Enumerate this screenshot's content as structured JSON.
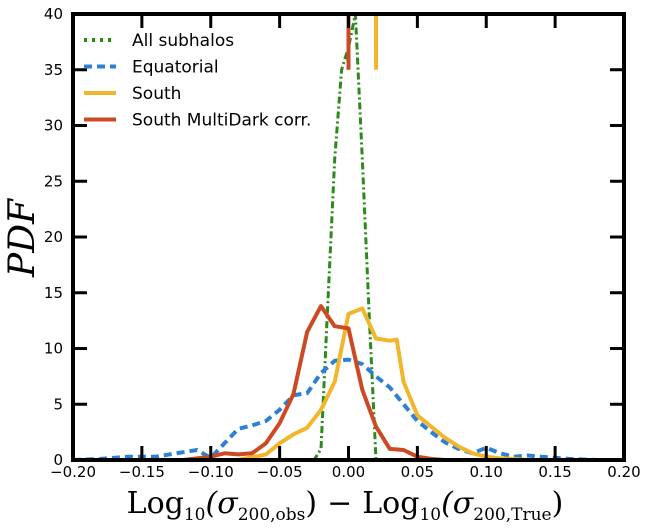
{
  "chart_data": {
    "type": "line",
    "title": "",
    "xlabel": "Log₁₀(σ₂₀₀,obs) − Log₁₀(σ₂₀₀,True)",
    "xlabel_parts": {
      "log1": "Log",
      "sub1": "10",
      "open1": "(σ",
      "sub1b": "200,obs",
      "close1": ")",
      "minus": "−",
      "log2": "Log",
      "sub2": "10",
      "open2": "(σ",
      "sub2b": "200,True",
      "close2": ")"
    },
    "ylabel": "PDF",
    "xlim": [
      -0.2,
      0.2
    ],
    "ylim": [
      0,
      40
    ],
    "xticks": [
      -0.2,
      -0.15,
      -0.1,
      -0.05,
      0.0,
      0.05,
      0.1,
      0.15,
      0.2
    ],
    "xtick_labels": [
      "−0.20",
      "−0.15",
      "−0.10",
      "−0.05",
      "0.00",
      "0.05",
      "0.10",
      "0.15",
      "0.20"
    ],
    "yticks": [
      0,
      5,
      10,
      15,
      20,
      25,
      30,
      35,
      40
    ],
    "ytick_labels": [
      "0",
      "5",
      "10",
      "15",
      "20",
      "25",
      "30",
      "35",
      "40"
    ],
    "grid": false,
    "legend_position": "top-left",
    "series": [
      {
        "name": "All subhalos",
        "color": "#2a8a1a",
        "style": "dashdot",
        "x": [
          -0.2,
          -0.05,
          -0.025,
          -0.02,
          -0.015,
          -0.01,
          -0.005,
          0.0,
          0.005,
          0.01,
          0.015,
          0.02,
          0.025,
          0.05,
          0.2
        ],
        "y": [
          0,
          0,
          0,
          1,
          14,
          27,
          35,
          37,
          40,
          27,
          13,
          0,
          0,
          0,
          0
        ]
      },
      {
        "name": "Equatorial",
        "color": "#2e7fd6",
        "style": "dashed",
        "x": [
          -0.2,
          -0.18,
          -0.16,
          -0.14,
          -0.12,
          -0.11,
          -0.1,
          -0.09,
          -0.08,
          -0.07,
          -0.06,
          -0.05,
          -0.04,
          -0.03,
          -0.02,
          -0.01,
          0.0,
          0.01,
          0.02,
          0.03,
          0.04,
          0.05,
          0.06,
          0.07,
          0.08,
          0.09,
          0.1,
          0.11,
          0.12,
          0.13,
          0.14,
          0.16,
          0.18,
          0.2
        ],
        "y": [
          0,
          0.1,
          0.3,
          0.3,
          0.7,
          0.9,
          0.2,
          1.5,
          2.8,
          3.1,
          3.5,
          4.5,
          5.8,
          6.0,
          7.8,
          8.9,
          9.0,
          8.6,
          7.5,
          6.5,
          5.0,
          3.5,
          2.5,
          1.6,
          1.0,
          0.6,
          1.1,
          0.6,
          0.3,
          0.4,
          0.3,
          0.1,
          0,
          0
        ]
      },
      {
        "name": "South",
        "color": "#f2b62c",
        "style": "solid",
        "x": [
          -0.2,
          -0.08,
          -0.06,
          -0.05,
          -0.04,
          -0.03,
          -0.02,
          -0.01,
          0.0,
          0.01,
          0.02,
          0.03,
          0.035,
          0.04,
          0.05,
          0.06,
          0.07,
          0.08,
          0.09,
          0.1,
          0.11,
          0.12,
          0.13,
          0.14,
          0.2
        ],
        "y": [
          0,
          0,
          0.5,
          1.5,
          2.3,
          2.9,
          4.5,
          7.0,
          13.1,
          13.6,
          10.9,
          10.7,
          10.8,
          7.0,
          4.0,
          3.0,
          2.0,
          1.2,
          0.6,
          0.3,
          0.15,
          0.1,
          0,
          0,
          0
        ]
      },
      {
        "name": "South MultiDark corr.",
        "color": "#cc4a23",
        "style": "solid",
        "x": [
          -0.2,
          -0.12,
          -0.1,
          -0.09,
          -0.08,
          -0.07,
          -0.06,
          -0.05,
          -0.04,
          -0.03,
          -0.02,
          -0.01,
          0.0,
          0.01,
          0.02,
          0.03,
          0.04,
          0.05,
          0.06,
          0.07,
          0.08,
          0.09,
          0.1,
          0.2
        ],
        "y": [
          0,
          0,
          0.3,
          0.6,
          0.5,
          0.6,
          1.5,
          3.3,
          5.9,
          11.5,
          13.8,
          12.0,
          11.8,
          6.3,
          3.0,
          1.0,
          0.9,
          0.3,
          0.1,
          0,
          0,
          0,
          0,
          0
        ]
      }
    ],
    "vertical_markers": [
      {
        "name": "South",
        "x": 0.02,
        "y_from": 35,
        "y_to": 40,
        "color": "#f2b62c"
      },
      {
        "name": "South MultiDark corr.",
        "x": 0.0,
        "y_from": 35,
        "y_to": 40,
        "color": "#cc4a23"
      }
    ]
  }
}
